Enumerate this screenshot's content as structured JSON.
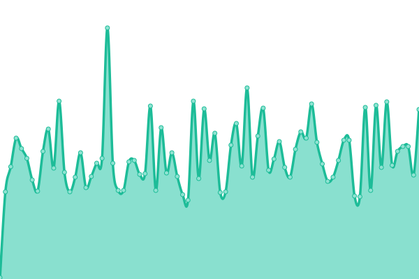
{
  "chart_data": {
    "type": "area",
    "title": "",
    "xlabel": "",
    "ylabel": "",
    "grid": false,
    "axes_visible": false,
    "smooth": true,
    "x": [
      0,
      1,
      2,
      3,
      4,
      5,
      6,
      7,
      8,
      9,
      10,
      11,
      12,
      13,
      14,
      15,
      16,
      17,
      18,
      19,
      20,
      21,
      22,
      23,
      24,
      25,
      26,
      27,
      28,
      29,
      30,
      31,
      32,
      33,
      34,
      35,
      36,
      37,
      38,
      39,
      40,
      41,
      42,
      43,
      44,
      45,
      46,
      47,
      48,
      49,
      50,
      51,
      52,
      53,
      54,
      55,
      56,
      57,
      58,
      59,
      60,
      61,
      62,
      63,
      64,
      65,
      66,
      67,
      68,
      69,
      70,
      71,
      72,
      73,
      74,
      75,
      76,
      77,
      78
    ],
    "values": [
      2,
      125,
      161,
      202,
      187,
      173,
      142,
      126,
      183,
      215,
      159,
      255,
      153,
      125,
      146,
      181,
      131,
      147,
      166,
      173,
      360,
      166,
      127,
      127,
      168,
      170,
      150,
      151,
      248,
      127,
      217,
      152,
      181,
      147,
      121,
      113,
      255,
      144,
      244,
      170,
      209,
      124,
      125,
      192,
      223,
      162,
      274,
      146,
      205,
      245,
      156,
      172,
      197,
      160,
      146,
      186,
      211,
      202,
      251,
      196,
      165,
      140,
      146,
      170,
      199,
      199,
      119,
      118,
      246,
      127,
      249,
      160,
      254,
      163,
      183,
      190,
      190,
      149,
      243
    ],
    "xlim": [
      0,
      78
    ],
    "ylim": [
      0,
      400
    ],
    "colors": {
      "line": "#1dbc98",
      "fill": "#89e0cf",
      "point_fill": "#8fe3d2",
      "point_stroke": "#1dbc98"
    }
  }
}
